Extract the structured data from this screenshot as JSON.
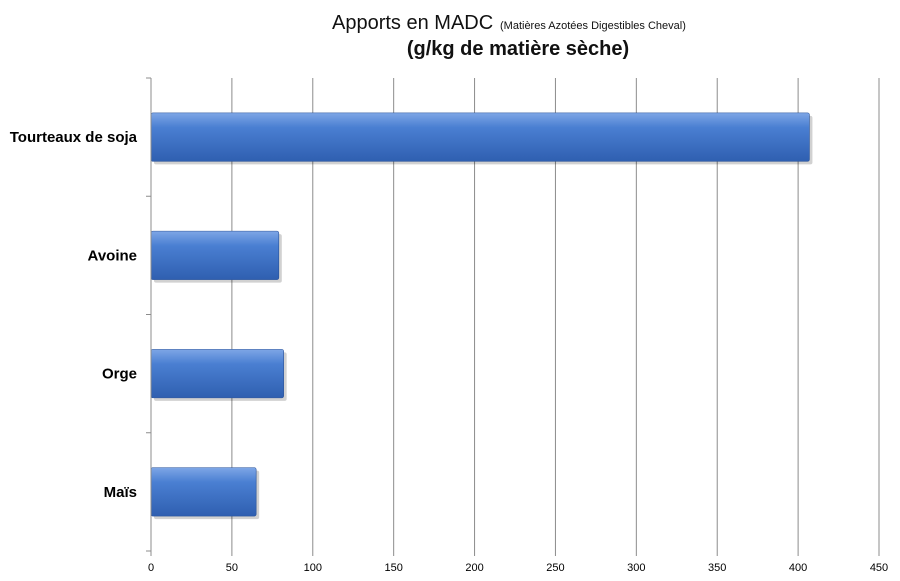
{
  "chart_data": {
    "type": "bar",
    "orientation": "horizontal",
    "title": "Apports en MADC",
    "title_note": "(Matières Azotées Digestibles Cheval)",
    "subtitle": "(g/kg de matière sèche)",
    "categories": [
      "Tourteaux de soja",
      "Avoine",
      "Orge",
      "Maïs"
    ],
    "values": [
      407,
      79,
      82,
      65
    ],
    "xlim": [
      0,
      450
    ],
    "x_ticks": [
      "0",
      "50",
      "100",
      "150",
      "200",
      "250",
      "300",
      "350",
      "400",
      "450"
    ],
    "grid": true,
    "legend": "none",
    "bar_color": "#3f72c4"
  }
}
